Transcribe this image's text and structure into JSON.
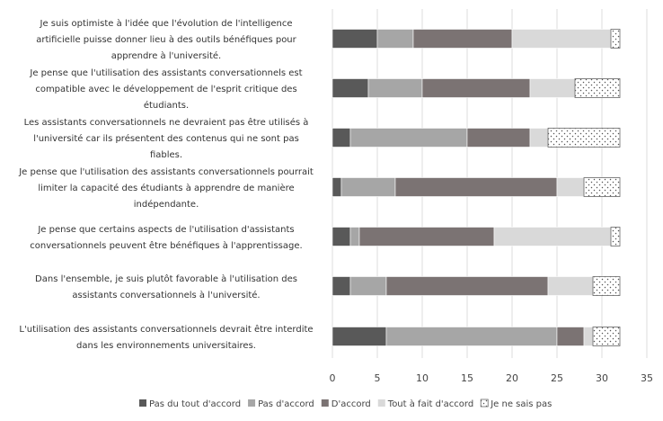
{
  "chart_data": {
    "type": "bar",
    "orientation": "horizontal",
    "stacked": true,
    "title": "",
    "xlabel": "",
    "ylabel": "",
    "xlim": [
      0,
      35
    ],
    "xticks": [
      0,
      5,
      10,
      15,
      20,
      25,
      30,
      35
    ],
    "grid": "vertical",
    "legend_position": "bottom",
    "categories": [
      "Je suis optimiste à l'idée que l'évolution de l'intelligence artificielle puisse donner lieu à des outils bénéfiques pour apprendre à l'université.",
      "Je pense que l'utilisation des assistants conversationnels est compatible avec le développement de l'esprit critique des étudiants.",
      "Les assistants conversationnels ne devraient pas être utilisés à l'université car ils présentent des contenus qui ne sont pas fiables.",
      "Je pense que l'utilisation des assistants conversationnels pourrait limiter la capacité des étudiants à apprendre de manière indépendante.",
      "Je pense que certains aspects de l'utilisation d'assistants conversationnels peuvent être bénéfiques à l'apprentissage.",
      "Dans l'ensemble, je suis plutôt favorable à l'utilisation des assistants conversationnels à l'université.",
      "L'utilisation des assistants conversationnels devrait être interdite dans les environnements universitaires."
    ],
    "category_lines": [
      [
        "Je suis optimiste à l'idée que l'évolution de l'intelligence",
        "artificielle puisse donner lieu à des outils bénéfiques pour",
        "apprendre à l'université."
      ],
      [
        "Je pense que l'utilisation des assistants conversationnels est",
        "compatible avec le développement de l'esprit critique des",
        "étudiants."
      ],
      [
        "Les assistants conversationnels ne devraient pas être utilisés à",
        "l'université car ils présentent des contenus qui ne sont pas",
        "fiables."
      ],
      [
        "Je pense que l'utilisation des assistants conversationnels pourrait",
        "limiter la capacité des étudiants à apprendre de manière",
        "indépendante."
      ],
      [
        "Je pense que certains aspects de l'utilisation d'assistants",
        "conversationnels peuvent être bénéfiques à l'apprentissage."
      ],
      [
        "Dans l'ensemble, je suis plutôt favorable à l'utilisation des",
        "assistants conversationnels à l'université."
      ],
      [
        "L'utilisation des assistants conversationnels devrait être interdite",
        "dans les environnements universitaires."
      ]
    ],
    "series": [
      {
        "name": "Pas du tout d'accord",
        "color": "#595959",
        "pattern": "solid",
        "values": [
          5,
          4,
          2,
          1,
          2,
          2,
          6
        ]
      },
      {
        "name": "Pas d'accord",
        "color": "#a6a6a6",
        "pattern": "solid",
        "values": [
          4,
          6,
          13,
          6,
          1,
          4,
          19
        ]
      },
      {
        "name": "D'accord",
        "color": "#7b7373",
        "pattern": "solid",
        "values": [
          11,
          12,
          7,
          18,
          15,
          18,
          3
        ]
      },
      {
        "name": "Tout à fait d'accord",
        "color": "#d9d9d9",
        "pattern": "solid",
        "values": [
          11,
          5,
          2,
          3,
          13,
          5,
          1
        ]
      },
      {
        "name": "Je ne sais pas",
        "color": "#ffffff",
        "pattern": "dots",
        "values": [
          1,
          5,
          8,
          4,
          1,
          3,
          3
        ]
      }
    ]
  }
}
